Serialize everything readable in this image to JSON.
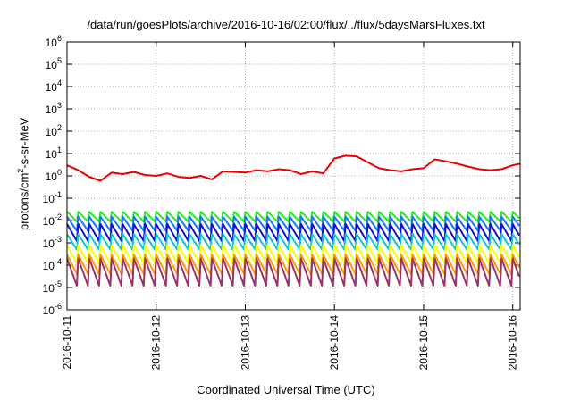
{
  "chart_data": {
    "type": "line",
    "title": "/data/run/goesPlots/archive/2016-10-16/02:00/flux/../flux/5daysMarsFluxes.txt",
    "xlabel": "Coordinated Universal Time (UTC)",
    "ylabel": "protons/cm²-s-sr-MeV",
    "ylabel_base": "protons/cm",
    "ylabel_sup": "2",
    "ylabel_rest": "-s-sr-MeV",
    "y_scale": "log",
    "ylim": [
      1e-06,
      1000000.0
    ],
    "y_ticks": [
      {
        "value": 1e-06,
        "base": "10",
        "exp": "-6"
      },
      {
        "value": 1e-05,
        "base": "10",
        "exp": "-5"
      },
      {
        "value": 0.0001,
        "base": "10",
        "exp": "-4"
      },
      {
        "value": 0.001,
        "base": "10",
        "exp": "-3"
      },
      {
        "value": 0.01,
        "base": "10",
        "exp": "-2"
      },
      {
        "value": 0.1,
        "base": "10",
        "exp": "-1"
      },
      {
        "value": 1,
        "base": "10",
        "exp": "0"
      },
      {
        "value": 10,
        "base": "10",
        "exp": "1"
      },
      {
        "value": 100,
        "base": "10",
        "exp": "2"
      },
      {
        "value": 1000,
        "base": "10",
        "exp": "3"
      },
      {
        "value": 10000,
        "base": "10",
        "exp": "4"
      },
      {
        "value": 100000,
        "base": "10",
        "exp": "5"
      },
      {
        "value": 1000000,
        "base": "10",
        "exp": "6"
      }
    ],
    "xlim": [
      "2016-10-11T00:00",
      "2016-10-16T02:00"
    ],
    "x_ticks": [
      "2016-10-11",
      "2016-10-12",
      "2016-10-13",
      "2016-10-14",
      "2016-10-15",
      "2016-10-16"
    ],
    "grid": true,
    "legend": "none",
    "series": [
      {
        "color": "#ee0000",
        "x": [
          "2016-10-11T00:00",
          "2016-10-11T03:00",
          "2016-10-11T06:00",
          "2016-10-11T09:00",
          "2016-10-11T12:00",
          "2016-10-11T15:00",
          "2016-10-11T18:00",
          "2016-10-11T21:00",
          "2016-10-12T00:00",
          "2016-10-12T03:00",
          "2016-10-12T06:00",
          "2016-10-12T09:00",
          "2016-10-12T12:00",
          "2016-10-12T15:00",
          "2016-10-12T18:00",
          "2016-10-12T21:00",
          "2016-10-13T00:00",
          "2016-10-13T03:00",
          "2016-10-13T06:00",
          "2016-10-13T09:00",
          "2016-10-13T12:00",
          "2016-10-13T15:00",
          "2016-10-13T18:00",
          "2016-10-13T21:00",
          "2016-10-14T00:00",
          "2016-10-14T03:00",
          "2016-10-14T06:00",
          "2016-10-14T09:00",
          "2016-10-14T12:00",
          "2016-10-14T15:00",
          "2016-10-14T18:00",
          "2016-10-14T21:00",
          "2016-10-15T00:00",
          "2016-10-15T03:00",
          "2016-10-15T06:00",
          "2016-10-15T09:00",
          "2016-10-15T12:00",
          "2016-10-15T15:00",
          "2016-10-15T18:00",
          "2016-10-15T21:00",
          "2016-10-16T00:00",
          "2016-10-16T02:00"
        ],
        "y": [
          3.0,
          1.8,
          0.9,
          0.6,
          1.4,
          1.2,
          1.5,
          1.1,
          1.0,
          1.3,
          0.9,
          0.8,
          1.0,
          0.7,
          1.6,
          1.5,
          1.4,
          1.8,
          1.6,
          2.0,
          1.8,
          1.2,
          1.6,
          1.3,
          6.0,
          8.0,
          7.5,
          4.0,
          2.2,
          1.8,
          1.6,
          2.0,
          2.2,
          5.5,
          4.5,
          3.5,
          2.6,
          2.0,
          1.8,
          2.0,
          3.0,
          3.5
        ]
      },
      {
        "color": "#22ee22",
        "period_hours": 3.0,
        "peak": 0.025,
        "trough": 0.009
      },
      {
        "color": "#1a78ff",
        "period_hours": 3.0,
        "peak": 0.015,
        "trough": 0.0035
      },
      {
        "color": "#1010d0",
        "period_hours": 3.0,
        "peak": 0.007,
        "trough": 0.0012
      },
      {
        "color": "#10c8c8",
        "period_hours": 3.0,
        "peak": 0.0025,
        "trough": 0.0005
      },
      {
        "color": "#ffff00",
        "period_hours": 3.0,
        "peak": 0.0008,
        "trough": 0.00012
      },
      {
        "color": "#ff9a00",
        "period_hours": 3.0,
        "peak": 0.0003,
        "trough": 4e-05
      },
      {
        "color": "#993366",
        "period_hours": 3.0,
        "peak": 0.0002,
        "trough": 1.2e-05
      }
    ]
  }
}
